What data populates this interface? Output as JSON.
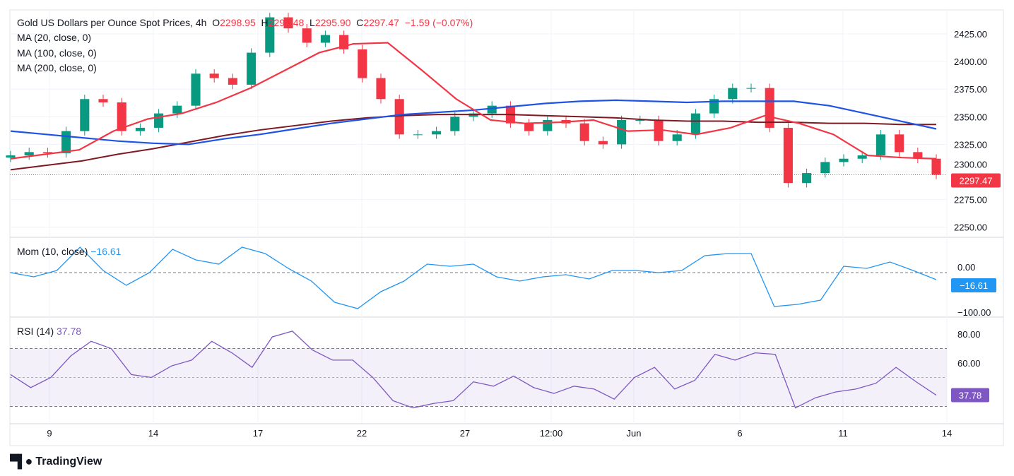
{
  "header": {
    "symbol": "Gold US Dollars per Ounce Spot Prices, 4h",
    "o_label": "O",
    "o": "2298.95",
    "h_label": "H",
    "h": "2299.48",
    "l_label": "L",
    "l": "2295.90",
    "c_label": "C",
    "c": "2297.47",
    "change": "−1.59 (−0.07%)"
  },
  "legends": {
    "ma20": "MA (20, close, 0)",
    "ma100": "MA (100, close, 0)",
    "ma200": "MA (200, close, 0)",
    "mom": "Mom (10, close)",
    "mom_value": "−16.61",
    "rsi": "RSI (14)",
    "rsi_value": "37.78"
  },
  "brand": "TradingView",
  "colors": {
    "up": "#089981",
    "down": "#f23645",
    "ma20": "#f23645",
    "ma100": "#1e53e5",
    "ma200": "#801922",
    "mom": "#2196f3",
    "rsi": "#7e57c2"
  },
  "chart_data": [
    {
      "type": "candlestick",
      "title": "Gold US Dollars per Ounce Spot Prices, 4h",
      "ylim": [
        2240,
        2450
      ],
      "yticks": [
        "2425.00",
        "2400.00",
        "2375.00",
        "2350.00",
        "2325.00",
        "2300.00",
        "2275.00",
        "2250.00"
      ],
      "xticks": [
        "9",
        "14",
        "17",
        "22",
        "27",
        "12:00",
        "Jun",
        "6",
        "11",
        "14"
      ],
      "last_price": "2297.47",
      "closes": [
        2315,
        2318,
        2317,
        2337,
        2366,
        2363,
        2337,
        2340,
        2353,
        2360,
        2389,
        2385,
        2379,
        2408,
        2440,
        2430,
        2417,
        2424,
        2411,
        2385,
        2366,
        2334,
        2334,
        2337,
        2350,
        2353,
        2360,
        2344,
        2337,
        2347,
        2344,
        2328,
        2325,
        2347,
        2347,
        2328,
        2334,
        2353,
        2366,
        2376,
        2376,
        2340,
        2290,
        2299,
        2309,
        2312,
        2315,
        2334,
        2318,
        2312,
        2297.47
      ],
      "ma20": [
        2312,
        2316,
        2320,
        2337,
        2348,
        2353,
        2363,
        2376,
        2392,
        2408,
        2416,
        2417,
        2392,
        2366,
        2347,
        2344,
        2345,
        2347,
        2337,
        2338,
        2334,
        2340,
        2351,
        2344,
        2334,
        2315,
        2313,
        2312
      ],
      "ma100": [
        2337,
        2334,
        2331,
        2328,
        2326,
        2325,
        2330,
        2334,
        2339,
        2344,
        2348,
        2352,
        2354,
        2356,
        2359,
        2362,
        2364,
        2365,
        2364,
        2363,
        2364,
        2364,
        2364,
        2360,
        2353,
        2346,
        2339
      ],
      "ma200": [
        2302,
        2306,
        2310,
        2316,
        2321,
        2327,
        2333,
        2338,
        2342,
        2346,
        2349,
        2351,
        2352,
        2352,
        2352,
        2351,
        2350,
        2349,
        2347,
        2346,
        2346,
        2345,
        2345,
        2344,
        2344,
        2343,
        2343
      ]
    },
    {
      "type": "line",
      "title": "Mom (10, close)",
      "ylim": [
        -110,
        80
      ],
      "yticks": [
        "0.00",
        "−100.00"
      ],
      "values": [
        0,
        -10,
        5,
        60,
        5,
        -30,
        0,
        55,
        30,
        20,
        60,
        45,
        10,
        -20,
        -70,
        -85,
        -45,
        -20,
        20,
        15,
        20,
        -10,
        -20,
        -10,
        -5,
        -15,
        5,
        5,
        0,
        5,
        40,
        45,
        45,
        -80,
        -75,
        -65,
        15,
        10,
        25,
        5,
        -16.61
      ]
    },
    {
      "type": "line",
      "title": "RSI (14)",
      "ylim": [
        22,
        92
      ],
      "yticks": [
        "80.00",
        "60.00"
      ],
      "bands": [
        30,
        50,
        70
      ],
      "values": [
        52,
        43,
        50,
        65,
        75,
        70,
        52,
        50,
        58,
        62,
        75,
        67,
        57,
        78,
        82,
        69,
        62,
        62,
        50,
        34,
        29,
        32,
        34,
        47,
        44,
        51,
        43,
        39,
        44,
        42,
        35,
        50,
        57,
        42,
        48,
        66,
        62,
        67,
        66,
        29,
        36,
        40,
        42,
        46,
        57,
        47,
        37.78
      ]
    }
  ]
}
